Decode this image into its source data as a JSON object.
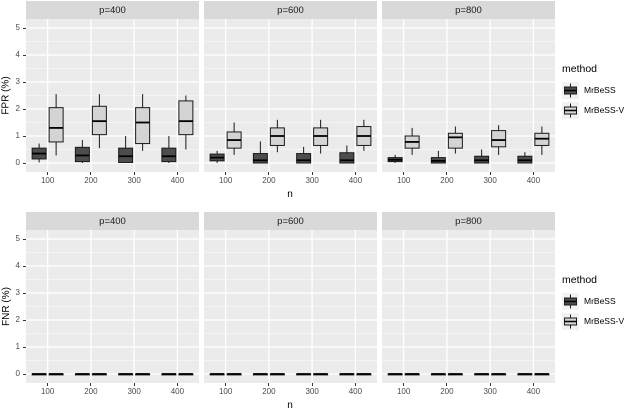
{
  "colors": {
    "panel_bg": "#EBEBEB",
    "strip_bg": "#D9D9D9",
    "grid_major": "#FFFFFF",
    "grid_minor": "#FFFFFF",
    "box_stroke": "#1A1A1A",
    "median": "#000000",
    "tick": "#333333",
    "tick_label": "#4D4D4D",
    "fill_dark": "#4D4D4D",
    "fill_light": "#D4D4D4",
    "legend_key_bg": "#F2F2F2"
  },
  "legend": {
    "title": "method",
    "items": [
      {
        "label": "MrBeSS",
        "fill": "#4D4D4D"
      },
      {
        "label": "MrBeSS-V",
        "fill": "#D4D4D4"
      }
    ]
  },
  "chart_data": [
    {
      "type": "boxplot",
      "name": "FPR",
      "ylabel": "FPR (%)",
      "xlabel": "n",
      "ylim": [
        0,
        5
      ],
      "yticks": [
        0,
        1,
        2,
        3,
        4,
        5
      ],
      "grid": true,
      "legend_position": "right",
      "categories": [
        "100",
        "200",
        "300",
        "400"
      ],
      "facets": [
        {
          "label": "p=400",
          "series": [
            {
              "name": "MrBeSS",
              "boxes": [
                [
                  0.02,
                  0.15,
                  0.35,
                  0.55,
                  0.72
                ],
                [
                  0.0,
                  0.05,
                  0.28,
                  0.58,
                  0.85
                ],
                [
                  0.0,
                  0.02,
                  0.25,
                  0.55,
                  1.0
                ],
                [
                  0.0,
                  0.05,
                  0.25,
                  0.55,
                  1.0
                ]
              ]
            },
            {
              "name": "MrBeSS-V",
              "boxes": [
                [
                  0.28,
                  0.78,
                  1.3,
                  2.05,
                  2.55
                ],
                [
                  0.55,
                  1.05,
                  1.55,
                  2.1,
                  2.55
                ],
                [
                  0.45,
                  0.72,
                  1.5,
                  2.05,
                  2.55
                ],
                [
                  0.5,
                  1.05,
                  1.55,
                  2.3,
                  2.5
                ]
              ]
            }
          ]
        },
        {
          "label": "p=600",
          "series": [
            {
              "name": "MrBeSS",
              "boxes": [
                [
                  0.0,
                  0.08,
                  0.2,
                  0.33,
                  0.45
                ],
                [
                  0.0,
                  0.0,
                  0.1,
                  0.35,
                  0.8
                ],
                [
                  0.0,
                  0.0,
                  0.1,
                  0.35,
                  0.6
                ],
                [
                  0.0,
                  0.0,
                  0.1,
                  0.38,
                  0.65
                ]
              ]
            },
            {
              "name": "MrBeSS-V",
              "boxes": [
                [
                  0.3,
                  0.55,
                  0.85,
                  1.15,
                  1.5
                ],
                [
                  0.4,
                  0.65,
                  1.0,
                  1.3,
                  1.6
                ],
                [
                  0.35,
                  0.65,
                  1.0,
                  1.3,
                  1.6
                ],
                [
                  0.45,
                  0.65,
                  1.0,
                  1.35,
                  1.6
                ]
              ]
            }
          ]
        },
        {
          "label": "p=800",
          "series": [
            {
              "name": "MrBeSS",
              "boxes": [
                [
                  0.0,
                  0.05,
                  0.12,
                  0.2,
                  0.3
                ],
                [
                  0.0,
                  0.0,
                  0.08,
                  0.2,
                  0.45
                ],
                [
                  0.0,
                  0.0,
                  0.1,
                  0.25,
                  0.5
                ],
                [
                  0.0,
                  0.0,
                  0.1,
                  0.25,
                  0.4
                ]
              ]
            },
            {
              "name": "MrBeSS-V",
              "boxes": [
                [
                  0.3,
                  0.55,
                  0.78,
                  1.0,
                  1.3
                ],
                [
                  0.35,
                  0.55,
                  0.95,
                  1.1,
                  1.35
                ],
                [
                  0.3,
                  0.6,
                  0.85,
                  1.2,
                  1.4
                ],
                [
                  0.3,
                  0.65,
                  0.9,
                  1.1,
                  1.35
                ]
              ]
            }
          ]
        }
      ]
    },
    {
      "type": "boxplot",
      "name": "FNR",
      "ylabel": "FNR (%)",
      "xlabel": "n",
      "ylim": [
        0,
        5
      ],
      "yticks": [
        0,
        1,
        2,
        3,
        4,
        5
      ],
      "grid": true,
      "legend_position": "right",
      "categories": [
        "100",
        "200",
        "300",
        "400"
      ],
      "facets": [
        {
          "label": "p=400",
          "series": [
            {
              "name": "MrBeSS",
              "boxes": [
                [
                  0,
                  0,
                  0,
                  0,
                  0
                ],
                [
                  0,
                  0,
                  0,
                  0,
                  0
                ],
                [
                  0,
                  0,
                  0,
                  0,
                  0
                ],
                [
                  0,
                  0,
                  0,
                  0,
                  0
                ]
              ]
            },
            {
              "name": "MrBeSS-V",
              "boxes": [
                [
                  0,
                  0,
                  0,
                  0,
                  0
                ],
                [
                  0,
                  0,
                  0,
                  0,
                  0
                ],
                [
                  0,
                  0,
                  0,
                  0,
                  0
                ],
                [
                  0,
                  0,
                  0,
                  0,
                  0
                ]
              ]
            }
          ]
        },
        {
          "label": "p=600",
          "series": [
            {
              "name": "MrBeSS",
              "boxes": [
                [
                  0,
                  0,
                  0,
                  0,
                  0
                ],
                [
                  0,
                  0,
                  0,
                  0,
                  0
                ],
                [
                  0,
                  0,
                  0,
                  0,
                  0
                ],
                [
                  0,
                  0,
                  0,
                  0,
                  0
                ]
              ]
            },
            {
              "name": "MrBeSS-V",
              "boxes": [
                [
                  0,
                  0,
                  0,
                  0,
                  0
                ],
                [
                  0,
                  0,
                  0,
                  0,
                  0
                ],
                [
                  0,
                  0,
                  0,
                  0,
                  0
                ],
                [
                  0,
                  0,
                  0,
                  0,
                  0
                ]
              ]
            }
          ]
        },
        {
          "label": "p=800",
          "series": [
            {
              "name": "MrBeSS",
              "boxes": [
                [
                  0,
                  0,
                  0,
                  0,
                  0
                ],
                [
                  0,
                  0,
                  0,
                  0,
                  0
                ],
                [
                  0,
                  0,
                  0,
                  0,
                  0
                ],
                [
                  0,
                  0,
                  0,
                  0,
                  0
                ]
              ]
            },
            {
              "name": "MrBeSS-V",
              "boxes": [
                [
                  0,
                  0,
                  0,
                  0,
                  0
                ],
                [
                  0,
                  0,
                  0,
                  0,
                  0
                ],
                [
                  0,
                  0,
                  0,
                  0,
                  0
                ],
                [
                  0,
                  0,
                  0,
                  0,
                  0
                ]
              ]
            }
          ]
        }
      ]
    }
  ]
}
